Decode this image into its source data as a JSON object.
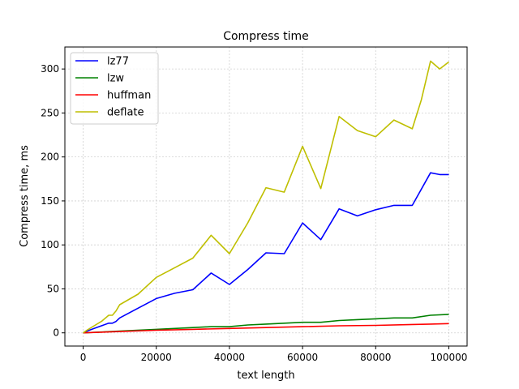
{
  "chart_data": {
    "type": "line",
    "title": "Compress time",
    "xlabel": "text length",
    "ylabel": "Compress time, ms",
    "xlim": [
      -5000,
      105000
    ],
    "ylim": [
      -15,
      325
    ],
    "grid": true,
    "legend_position": "top-left",
    "xticks": [
      0,
      20000,
      40000,
      60000,
      80000,
      100000
    ],
    "xtick_labels": [
      "0",
      "20000",
      "40000",
      "60000",
      "80000",
      "100000"
    ],
    "yticks": [
      0,
      50,
      100,
      150,
      200,
      250,
      300
    ],
    "ytick_labels": [
      "0",
      "50",
      "100",
      "150",
      "200",
      "250",
      "300"
    ],
    "series": [
      {
        "name": "lz77",
        "color": "#0000ff",
        "x": [
          0,
          1000,
          3000,
          5000,
          7000,
          8000,
          9000,
          10000,
          15000,
          20000,
          25000,
          30000,
          35000,
          40000,
          45000,
          50000,
          55000,
          60000,
          65000,
          70000,
          75000,
          80000,
          85000,
          90000,
          95000,
          97500,
          100000
        ],
        "y": [
          0,
          2,
          5,
          8,
          11,
          11,
          13,
          17,
          28,
          39,
          45,
          49,
          68,
          55,
          72,
          91,
          90,
          125,
          106,
          141,
          133,
          140,
          145,
          145,
          182,
          180,
          180
        ]
      },
      {
        "name": "lzw",
        "color": "#008000",
        "x": [
          0,
          10000,
          20000,
          30000,
          35000,
          40000,
          45000,
          50000,
          55000,
          60000,
          65000,
          70000,
          75000,
          80000,
          85000,
          90000,
          95000,
          100000
        ],
        "y": [
          0,
          2,
          4,
          6,
          7,
          7,
          9,
          10,
          11,
          12,
          12,
          14,
          15,
          16,
          17,
          17,
          20,
          21
        ]
      },
      {
        "name": "huffman",
        "color": "#ff0000",
        "x": [
          0,
          10000,
          20000,
          30000,
          40000,
          50000,
          60000,
          70000,
          80000,
          90000,
          95000,
          100000
        ],
        "y": [
          0,
          1.5,
          3,
          4,
          5,
          6,
          7,
          8,
          8.5,
          9.5,
          10,
          10.5
        ]
      },
      {
        "name": "deflate",
        "color": "#bfbf00",
        "x": [
          0,
          1000,
          3000,
          5000,
          7000,
          8000,
          9000,
          10000,
          15000,
          20000,
          25000,
          30000,
          35000,
          40000,
          45000,
          50000,
          55000,
          60000,
          65000,
          70000,
          75000,
          80000,
          85000,
          90000,
          92500,
          95000,
          97500,
          100000
        ],
        "y": [
          0,
          3,
          8,
          13,
          20,
          20,
          25,
          32,
          44,
          63,
          74,
          85,
          111,
          90,
          125,
          165,
          160,
          212,
          164,
          246,
          230,
          223,
          242,
          232,
          265,
          309,
          300,
          308
        ]
      }
    ]
  }
}
